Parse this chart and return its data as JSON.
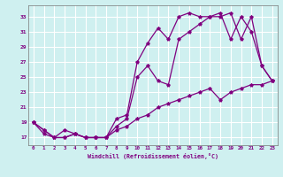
{
  "xlabel": "Windchill (Refroidissement éolien,°C)",
  "bg_color": "#cff0f0",
  "line_color": "#800080",
  "grid_color": "#ffffff",
  "xlim": [
    -0.5,
    23.5
  ],
  "ylim": [
    16.0,
    34.5
  ],
  "xticks": [
    0,
    1,
    2,
    3,
    4,
    5,
    6,
    7,
    8,
    9,
    10,
    11,
    12,
    13,
    14,
    15,
    16,
    17,
    18,
    19,
    20,
    21,
    22,
    23
  ],
  "yticks": [
    17,
    19,
    21,
    23,
    25,
    27,
    29,
    31,
    33
  ],
  "line1_x": [
    0,
    1,
    2,
    3,
    4,
    5,
    6,
    7,
    8,
    9,
    10,
    11,
    12,
    13,
    14,
    15,
    16,
    17,
    18,
    19,
    20,
    21,
    22,
    23
  ],
  "line1_y": [
    19,
    18,
    17,
    17,
    17.5,
    17,
    17,
    17,
    19.5,
    20,
    27,
    29.5,
    31.5,
    30,
    33,
    33.5,
    33,
    33,
    33.5,
    30,
    33,
    31,
    26.5,
    24.5
  ],
  "line2_x": [
    0,
    1,
    2,
    3,
    4,
    5,
    6,
    7,
    8,
    9,
    10,
    11,
    12,
    13,
    14,
    15,
    16,
    17,
    18,
    19,
    20,
    21,
    22,
    23
  ],
  "line2_y": [
    19,
    18,
    17,
    17,
    17.5,
    17,
    17,
    17,
    18.5,
    19.5,
    25,
    26.5,
    24.5,
    24,
    30,
    31,
    32,
    33,
    33,
    33.5,
    30,
    33,
    26.5,
    24.5
  ],
  "line3_x": [
    0,
    1,
    2,
    3,
    4,
    5,
    6,
    7,
    8,
    9,
    10,
    11,
    12,
    13,
    14,
    15,
    16,
    17,
    18,
    19,
    20,
    21,
    22,
    23
  ],
  "line3_y": [
    19,
    17.5,
    17,
    18,
    17.5,
    17,
    17,
    17,
    18,
    18.5,
    19.5,
    20,
    21,
    21.5,
    22,
    22.5,
    23,
    23.5,
    22,
    23,
    23.5,
    24,
    24,
    24.5
  ]
}
